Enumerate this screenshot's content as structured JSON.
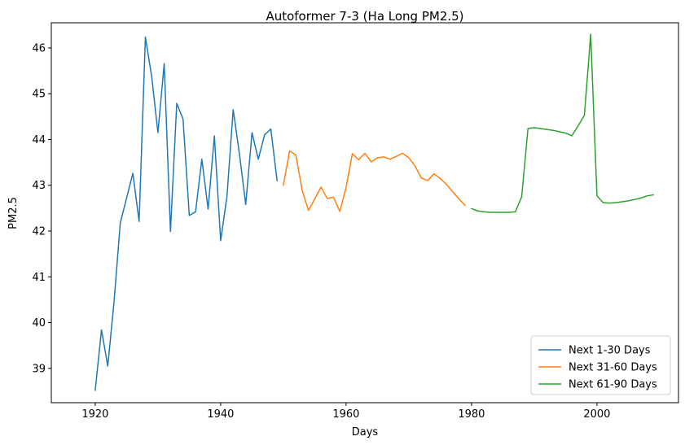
{
  "chart_data": {
    "type": "line",
    "title": "Autoformer 7-3 (Ha Long PM2.5)",
    "xlabel": "Days",
    "ylabel": "PM2.5",
    "xlim": [
      1913,
      2013
    ],
    "ylim": [
      38.25,
      46.55
    ],
    "xticks": [
      1920,
      1940,
      1960,
      1980,
      2000
    ],
    "yticks": [
      39,
      40,
      41,
      42,
      43,
      44,
      45,
      46
    ],
    "grid": false,
    "legend": "lower-right",
    "series": [
      {
        "name": "Next 1-30 Days",
        "color": "#1f77b4",
        "x": [
          1920,
          1921,
          1922,
          1923,
          1924,
          1925,
          1926,
          1927,
          1928,
          1929,
          1930,
          1931,
          1932,
          1933,
          1934,
          1935,
          1936,
          1937,
          1938,
          1939,
          1940,
          1941,
          1942,
          1943,
          1944,
          1945,
          1946,
          1947,
          1948,
          1949
        ],
        "y": [
          38.52,
          39.84,
          39.05,
          40.45,
          42.18,
          42.72,
          43.26,
          42.21,
          46.24,
          45.38,
          44.15,
          45.66,
          41.99,
          44.79,
          44.45,
          42.34,
          42.42,
          43.57,
          42.48,
          44.08,
          41.79,
          42.75,
          44.65,
          43.68,
          42.58,
          44.15,
          43.57,
          44.1,
          44.23,
          43.1
        ]
      },
      {
        "name": "Next 31-60 Days",
        "color": "#ff7f0e",
        "x": [
          1950,
          1951,
          1952,
          1953,
          1954,
          1955,
          1956,
          1957,
          1958,
          1959,
          1960,
          1961,
          1962,
          1963,
          1964,
          1965,
          1966,
          1967,
          1968,
          1969,
          1970,
          1971,
          1972,
          1973,
          1974,
          1975,
          1976,
          1977,
          1978,
          1979
        ],
        "y": [
          43.0,
          43.75,
          43.66,
          42.89,
          42.45,
          42.7,
          42.96,
          42.71,
          42.74,
          42.43,
          42.95,
          43.69,
          43.56,
          43.7,
          43.51,
          43.6,
          43.62,
          43.57,
          43.63,
          43.7,
          43.6,
          43.42,
          43.16,
          43.1,
          43.25,
          43.15,
          43.02,
          42.86,
          42.7,
          42.56
        ]
      },
      {
        "name": "Next 61-90 Days",
        "color": "#2ca02c",
        "x": [
          1980,
          1981,
          1982,
          1983,
          1984,
          1985,
          1986,
          1987,
          1988,
          1989,
          1990,
          1991,
          1992,
          1993,
          1994,
          1995,
          1996,
          1997,
          1998,
          1999,
          2000,
          2001,
          2002,
          2003,
          2004,
          2005,
          2006,
          2007,
          2008,
          2009
        ],
        "y": [
          42.49,
          42.44,
          42.42,
          42.41,
          42.41,
          42.41,
          42.41,
          42.42,
          42.75,
          44.24,
          44.26,
          44.24,
          44.22,
          44.2,
          44.17,
          44.14,
          44.08,
          44.3,
          44.53,
          46.3,
          42.77,
          42.62,
          42.61,
          42.62,
          42.64,
          42.66,
          42.69,
          42.72,
          42.77,
          42.79
        ]
      }
    ]
  }
}
